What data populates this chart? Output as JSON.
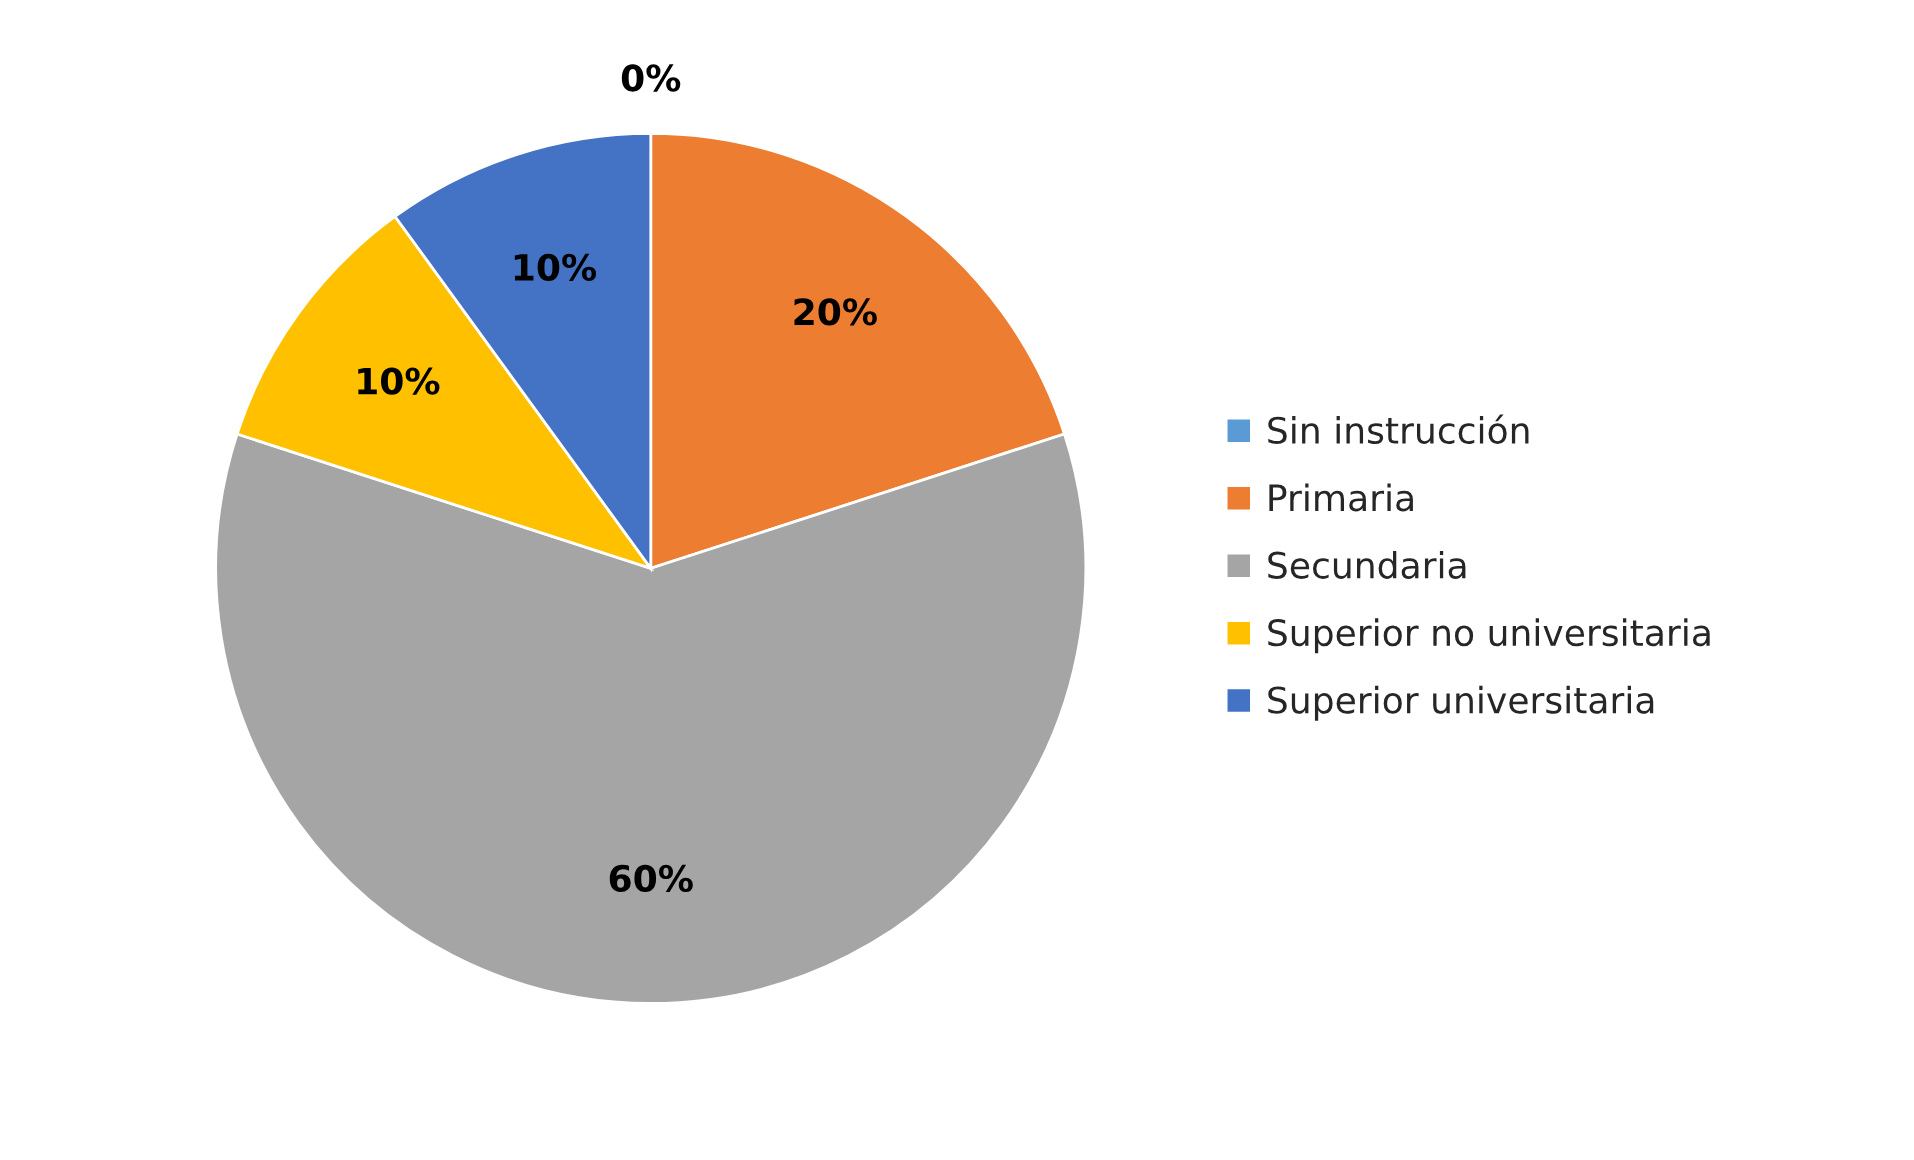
{
  "chart_data": {
    "type": "pie",
    "categories": [
      "Sin instrucción",
      "Primaria",
      "Secundaria",
      "Superior no universitaria",
      "Superior universitaria"
    ],
    "values": [
      0,
      20,
      60,
      10,
      10
    ],
    "value_labels": [
      "0%",
      "20%",
      "60%",
      "10%",
      "10%"
    ],
    "colors": [
      "#5b9bd5",
      "#ed7d31",
      "#a5a5a5",
      "#ffc000",
      "#4472c4"
    ],
    "legend": "right"
  }
}
